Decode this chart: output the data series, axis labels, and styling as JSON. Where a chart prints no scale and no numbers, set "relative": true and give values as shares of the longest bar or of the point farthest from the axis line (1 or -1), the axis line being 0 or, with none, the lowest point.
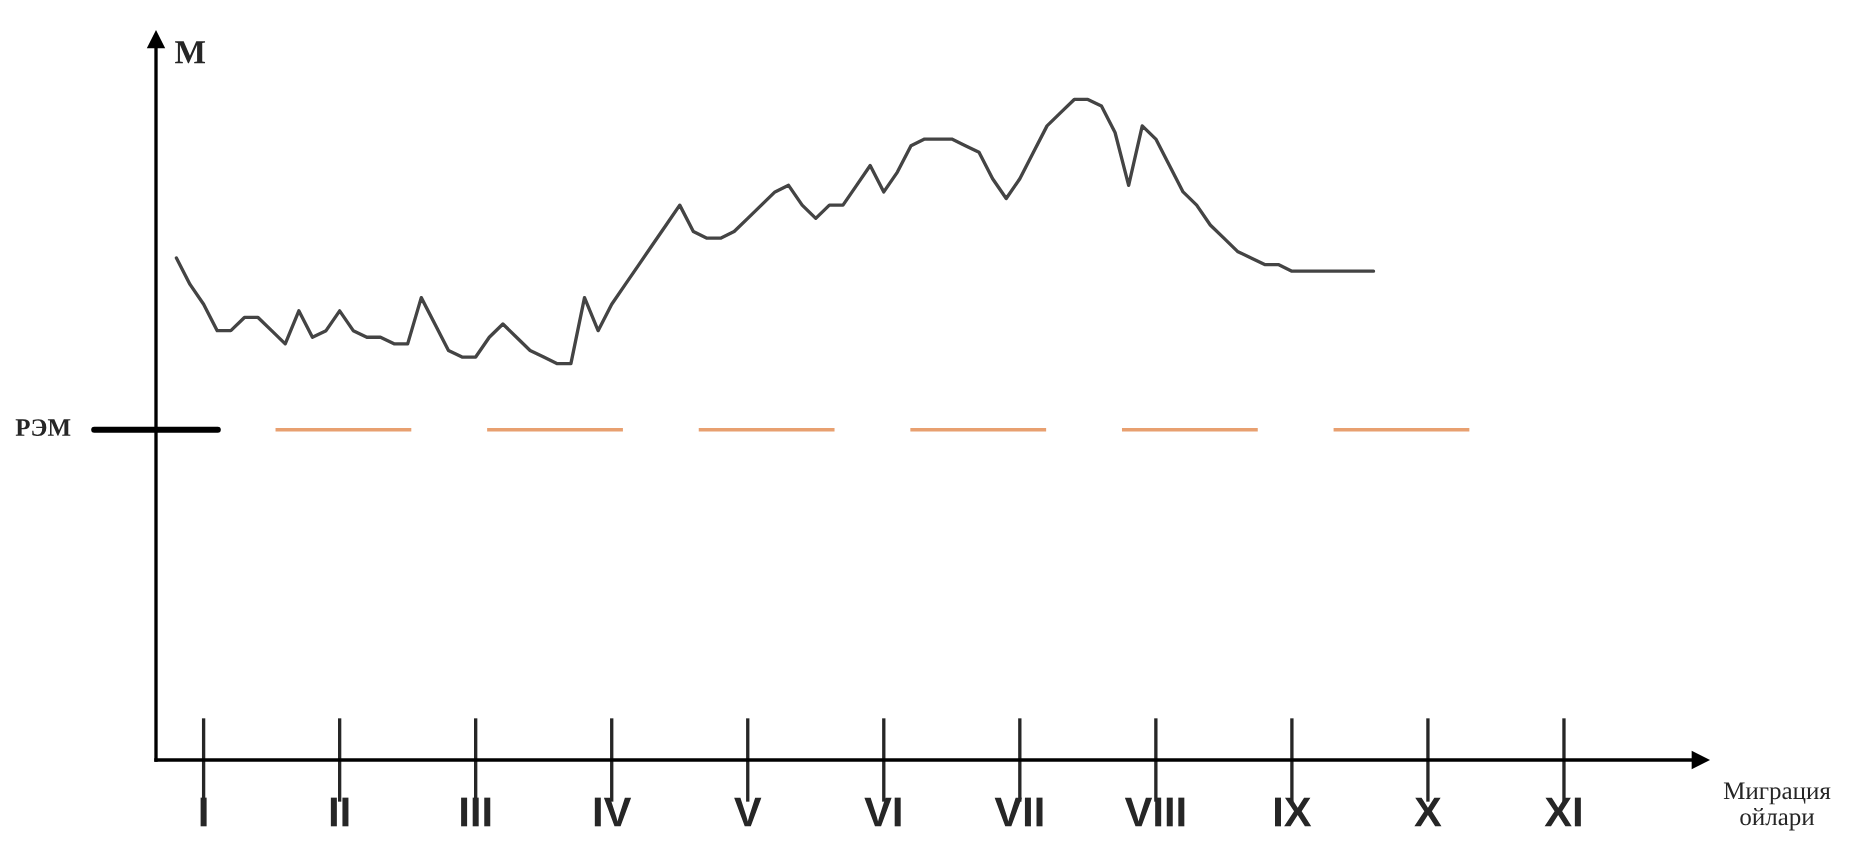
{
  "chart_data": {
    "type": "line",
    "relative": true,
    "ylabel": "M",
    "annotations": [
      "Миграция\nойлари"
    ],
    "categories": [
      null,
      null,
      "I",
      null,
      null,
      null,
      null,
      null,
      null,
      null,
      null,
      null,
      "II",
      null,
      null,
      null,
      null,
      null,
      null,
      null,
      null,
      null,
      "III",
      null,
      null,
      null,
      null,
      null,
      null,
      null,
      null,
      null,
      "IV",
      null,
      null,
      null,
      null,
      null,
      null,
      null,
      null,
      null,
      "V",
      null,
      null,
      null,
      null,
      null,
      null,
      null,
      null,
      null,
      "VI",
      null,
      null,
      null,
      null,
      null,
      null,
      null,
      null,
      null,
      "VII",
      null,
      null,
      null,
      null,
      null,
      null,
      null,
      null,
      null,
      "VIII",
      null,
      null,
      null,
      null,
      null,
      null,
      null,
      null,
      null,
      "IX",
      null,
      null,
      null,
      null,
      null,
      null,
      null,
      null,
      null,
      "X",
      null,
      null,
      null,
      null,
      null,
      null,
      null,
      null,
      null,
      "XI"
    ],
    "series": [
      {
        "color": "#444444",
        "values": [
          0.76,
          0.72,
          0.69,
          0.65,
          0.65,
          0.67,
          0.67,
          0.65,
          0.63,
          0.68,
          0.64,
          0.65,
          0.68,
          0.65,
          0.64,
          0.64,
          0.63,
          0.63,
          0.7,
          0.66,
          0.62,
          0.61,
          0.61,
          0.64,
          0.66,
          0.64,
          0.62,
          0.61,
          0.6,
          0.6,
          0.7,
          0.65,
          0.69,
          0.72,
          0.75,
          0.78,
          0.81,
          0.84,
          0.8,
          0.79,
          0.79,
          0.8,
          0.82,
          0.84,
          0.86,
          0.87,
          0.84,
          0.82,
          0.84,
          0.84,
          0.87,
          0.9,
          0.86,
          0.89,
          0.93,
          0.94,
          0.94,
          0.94,
          0.93,
          0.92,
          0.88,
          0.85,
          0.88,
          0.92,
          0.96,
          0.98,
          1.0,
          1.0,
          0.99,
          0.95,
          0.87,
          0.96,
          0.94,
          0.9,
          0.86,
          0.84,
          0.81,
          0.79,
          0.77,
          0.76,
          0.75,
          0.75,
          0.74,
          0.74,
          0.74,
          0.74,
          0.74,
          0.74,
          0.74,
          null,
          null,
          null,
          null,
          null,
          null,
          null,
          null,
          null,
          null,
          null,
          null,
          null,
          null
        ]
      }
    ],
    "ref_lines": [
      {
        "axis": "y",
        "value": 0.5,
        "label": "РЭМ",
        "color": "#e8a070",
        "line_style": "dashed"
      }
    ],
    "grid": false,
    "legend": false,
    "marker": "none",
    "line_style": "solid"
  }
}
